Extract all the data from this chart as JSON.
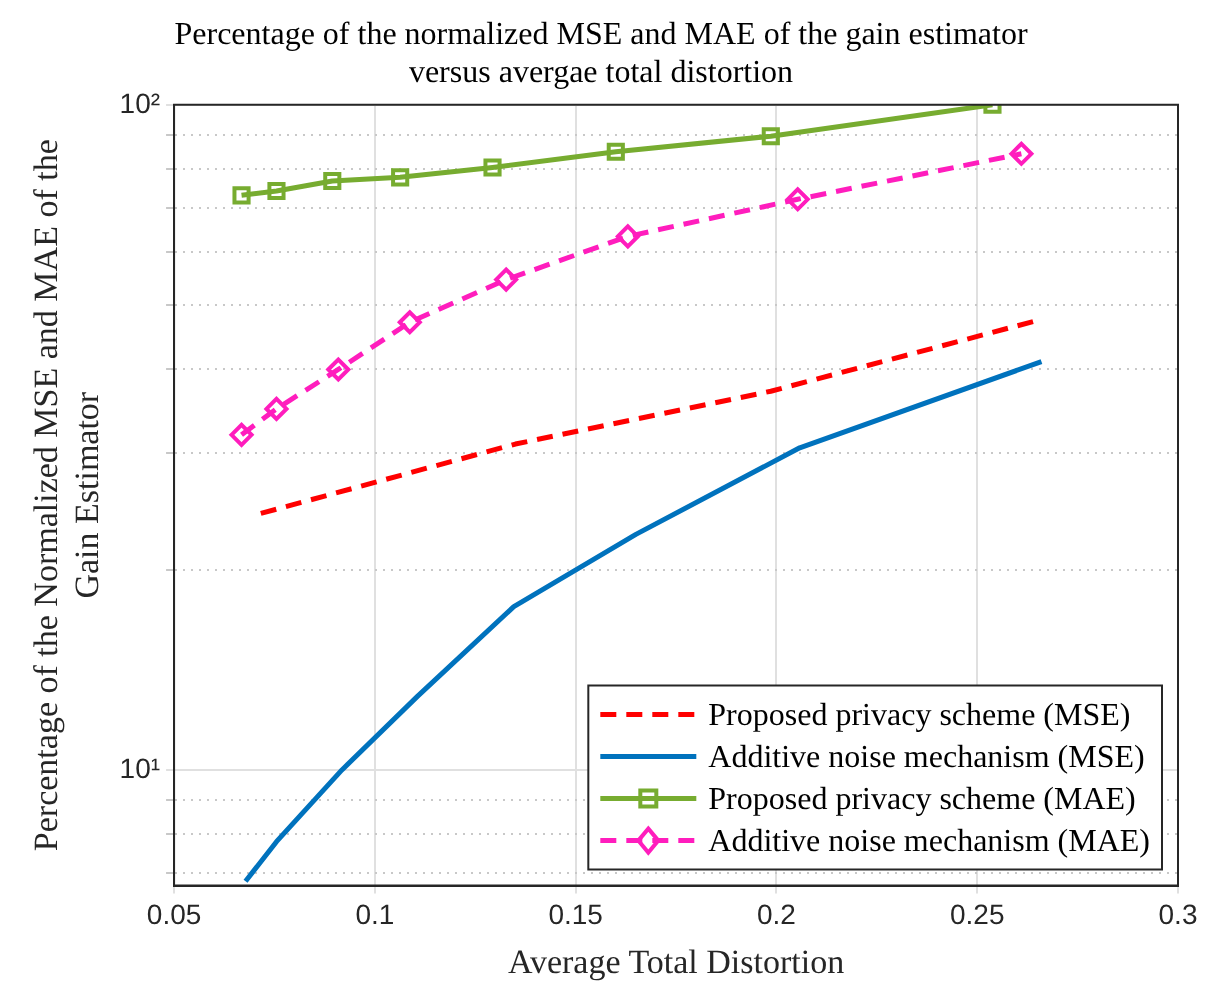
{
  "chart_data": {
    "type": "line",
    "title": "Percentage of the normalized MSE and MAE of the gain estimator versus avergae total distortion",
    "xlabel": "Average Total Distortion",
    "ylabel": "Percentage of the Normalized MSE and MAE of the Gain Estimator",
    "series": [
      {
        "name": "Proposed privacy scheme (MSE)",
        "color": "#ff0000",
        "line_style": "dashed",
        "marker": "none",
        "x": [
          0.0716,
          0.135,
          0.1986,
          0.265
        ],
        "values": [
          24.3,
          30.9,
          37.1,
          47.4
        ]
      },
      {
        "name": "Additive noise mechanism (MSE)",
        "color": "#0072bd",
        "line_style": "solid",
        "marker": "none",
        "x": [
          0.0678,
          0.0755,
          0.0918,
          0.1106,
          0.1346,
          0.165,
          0.2058,
          0.266
        ],
        "values": [
          6.8,
          7.8,
          10.0,
          12.9,
          17.6,
          22.6,
          30.5,
          41.1
        ]
      },
      {
        "name": "Proposed privacy scheme (MAE)",
        "color": "#77ac30",
        "line_style": "solid",
        "marker": "square",
        "x": [
          0.0668,
          0.0755,
          0.0894,
          0.1063,
          0.1293,
          0.16,
          0.1986,
          0.2538
        ],
        "values": [
          73.1,
          74.2,
          76.8,
          77.8,
          80.5,
          85.0,
          89.7,
          100
        ]
      },
      {
        "name": "Additive noise mechanism (MAE)",
        "color": "#ff1dbd",
        "line_style": "dashed",
        "marker": "diamond",
        "x": [
          0.0668,
          0.0755,
          0.0909,
          0.1087,
          0.1327,
          0.163,
          0.2053,
          0.261
        ],
        "values": [
          31.9,
          34.9,
          40.0,
          47.1,
          54.6,
          63.4,
          72.1,
          84.4
        ]
      }
    ],
    "xlim": [
      0.05,
      0.3
    ],
    "xticks": [
      0.05,
      0.1,
      0.15,
      0.2,
      0.25,
      0.3
    ],
    "ylim": [
      6.7,
      100
    ],
    "log": "y",
    "yticks": [
      {
        "value": 7,
        "label": null
      },
      {
        "value": 8,
        "label": null
      },
      {
        "value": 9,
        "label": null
      },
      {
        "value": 10,
        "label": "10¹"
      },
      {
        "value": 20,
        "label": null
      },
      {
        "value": 30,
        "label": null
      },
      {
        "value": 40,
        "label": null
      },
      {
        "value": 50,
        "label": null
      },
      {
        "value": 60,
        "label": null
      },
      {
        "value": 70,
        "label": null
      },
      {
        "value": 80,
        "label": null
      },
      {
        "value": 90,
        "label": null
      },
      {
        "value": 100,
        "label": "10²"
      }
    ],
    "grid": true,
    "legend": "bottom right"
  }
}
